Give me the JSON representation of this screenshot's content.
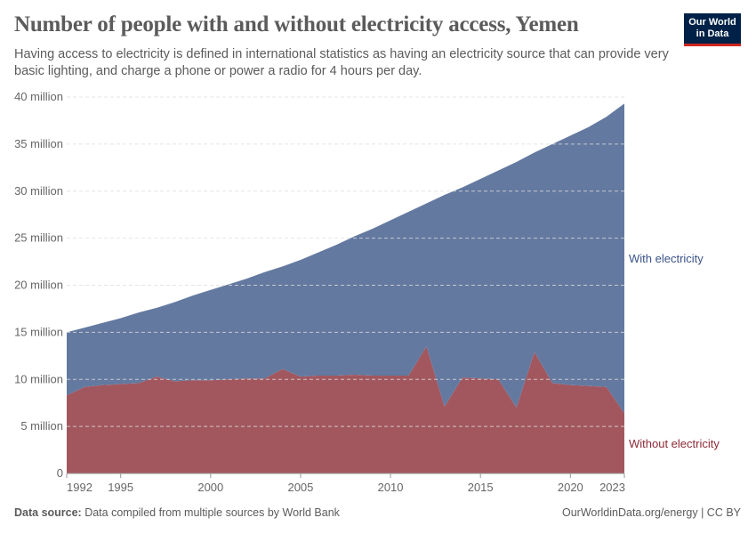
{
  "header": {
    "title": "Number of people with and without electricity access, Yemen",
    "subtitle": "Having access to electricity is defined in international statistics as having an electricity source that can provide very basic lighting, and charge a phone or power a radio for 4 hours per day.",
    "logo": "Our World in Data"
  },
  "footer": {
    "source_label": "Data source:",
    "source_text": " Data compiled from multiple sources by World Bank",
    "credit": "OurWorldinData.org/energy | CC BY"
  },
  "chart_data": {
    "type": "area",
    "stacked": true,
    "x": [
      1992,
      1993,
      1994,
      1995,
      1996,
      1997,
      1998,
      1999,
      2000,
      2001,
      2002,
      2003,
      2004,
      2005,
      2006,
      2007,
      2008,
      2009,
      2010,
      2011,
      2012,
      2013,
      2014,
      2015,
      2016,
      2017,
      2018,
      2019,
      2020,
      2021,
      2022,
      2023
    ],
    "series": [
      {
        "name": "Without electricity",
        "color": "#a2575f",
        "label_color": "#8c2a35",
        "values": [
          8.3,
          9.2,
          9.4,
          9.5,
          9.6,
          10.3,
          9.8,
          9.9,
          9.9,
          10.0,
          10.1,
          10.1,
          11.1,
          10.3,
          10.4,
          10.4,
          10.5,
          10.4,
          10.4,
          10.4,
          13.5,
          7.1,
          10.2,
          10.1,
          10.0,
          7.0,
          12.9,
          9.6,
          9.4,
          9.3,
          9.2,
          6.4
        ]
      },
      {
        "name": "With electricity",
        "color": "#6379a0",
        "label_color": "#3b5488",
        "values": [
          6.7,
          6.3,
          6.6,
          7.0,
          7.5,
          7.3,
          8.4,
          9.0,
          9.6,
          10.1,
          10.6,
          11.3,
          10.9,
          12.4,
          13.1,
          13.9,
          14.7,
          15.6,
          16.5,
          17.4,
          15.2,
          22.5,
          20.2,
          21.2,
          22.2,
          26.1,
          21.2,
          25.4,
          26.5,
          27.5,
          28.7,
          32.9
        ]
      }
    ],
    "unit": "million",
    "yticks": [
      0,
      5,
      10,
      15,
      20,
      25,
      30,
      35,
      40
    ],
    "ytick_labels": [
      "0",
      "5 million",
      "10 million",
      "15 million",
      "20 million",
      "25 million",
      "30 million",
      "35 million",
      "40 million"
    ],
    "xticks": [
      1992,
      1995,
      2000,
      2005,
      2010,
      2015,
      2020,
      2023
    ],
    "ylim": [
      0,
      40
    ],
    "xlim": [
      1992,
      2023
    ],
    "grid": "horizontal dashed",
    "legend": "right, inline labels"
  }
}
